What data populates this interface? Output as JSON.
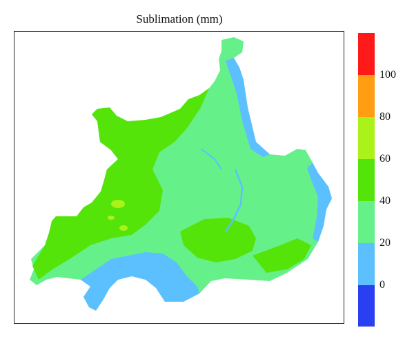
{
  "title": "Sublimation (mm)",
  "colors": {
    "band_neg": "#2a3ff0",
    "band_0_20": "#5cc0ff",
    "band_20_40": "#66f08a",
    "band_40_60": "#55e40a",
    "band_60_80": "#aaf21a",
    "band_80_100": "#ff9e12",
    "band_100_120": "#ff1a1a"
  },
  "colorbar": {
    "ticks": [
      "0",
      "20",
      "40",
      "60",
      "80",
      "100"
    ],
    "range": [
      -20,
      120
    ]
  }
}
